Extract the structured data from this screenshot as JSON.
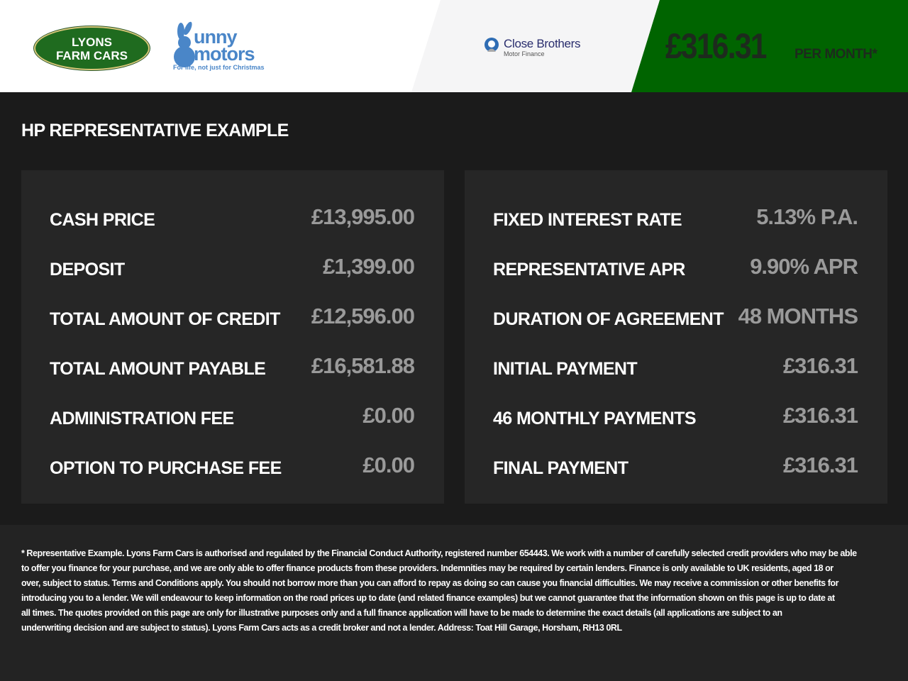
{
  "header": {
    "logos": {
      "lyons": [
        "LYONS",
        "FARM CARS"
      ],
      "bunny": {
        "line1": "unny",
        "line2": "motors",
        "tagline": "For life, not just for Christmas"
      },
      "close_brothers": {
        "name": "Close Brothers",
        "sub": "Motor Finance"
      }
    },
    "price": "£316.31",
    "per_month": "PER MONTH*",
    "colors": {
      "green": "#006400",
      "value_grey": "#9a9a9a"
    }
  },
  "title": "HP REPRESENTATIVE EXAMPLE",
  "left_rows": [
    {
      "label": "CASH PRICE",
      "value": "£13,995.00"
    },
    {
      "label": "DEPOSIT",
      "value": "£1,399.00"
    },
    {
      "label": "TOTAL AMOUNT OF CREDIT",
      "value": "£12,596.00"
    },
    {
      "label": "TOTAL AMOUNT PAYABLE",
      "value": "£16,581.88"
    },
    {
      "label": "ADMINISTRATION FEE",
      "value": "£0.00"
    },
    {
      "label": "OPTION TO PURCHASE FEE",
      "value": "£0.00"
    }
  ],
  "right_rows": [
    {
      "label": "FIXED INTEREST RATE",
      "value": "5.13% P.A."
    },
    {
      "label": "REPRESENTATIVE APR",
      "value": "9.90% APR"
    },
    {
      "label": "DURATION OF AGREEMENT",
      "value": "48 MONTHS"
    },
    {
      "label": "INITIAL PAYMENT",
      "value": "£316.31"
    },
    {
      "label": "46 MONTHLY PAYMENTS",
      "value": "£316.31"
    },
    {
      "label": "FINAL PAYMENT",
      "value": "£316.31"
    }
  ],
  "disclaimer_lines": [
    "* Representative Example. Lyons Farm Cars is authorised and regulated by the Financial Conduct Authority, registered number 654443. We work with a number of carefully selected credit providers who may be able",
    "to offer you finance for your purchase, and we are only able to offer finance products from these providers. Indemnities may be required by certain lenders. Finance is only available to UK residents, aged 18 or",
    "over, subject to status. Terms and Conditions apply. You should not borrow more than you can afford to repay as doing so can cause you financial difficulties. We may receive a commission or other benefits for",
    "introducing you to a lender. We will endeavour to keep information on the road prices up to date (and related finance examples) but we cannot guarantee that the information shown on this page is up to date at",
    "all times. The quotes provided on this page are only for illustrative purposes only and a full finance application will have to be made to determine the exact details (all applications are subject to an",
    "underwriting decision and are subject to status). Lyons Farm Cars acts as a credit broker and not a lender. Address:  Toat Hill Garage, Horsham, RH13 0RL"
  ]
}
